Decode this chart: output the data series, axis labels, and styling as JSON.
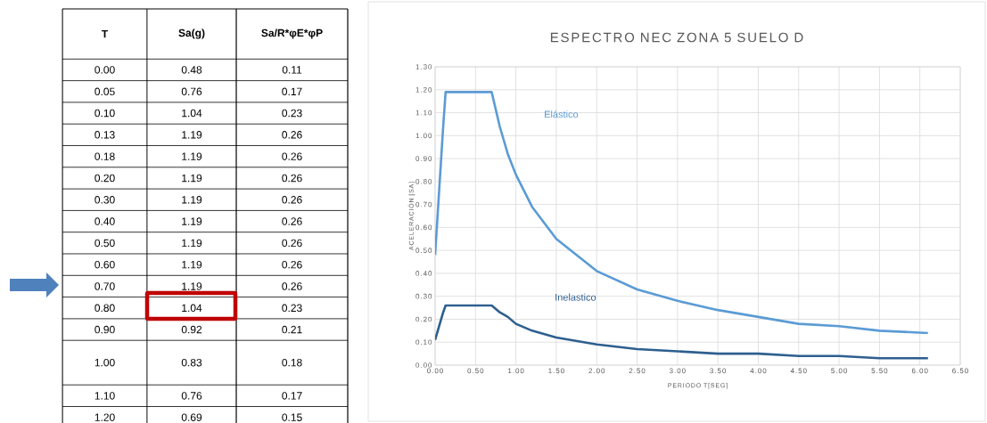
{
  "chart_data": [
    {
      "type": "heatmap",
      "ylabel": "T",
      "categories": [
        "Sa(g)",
        "Sa/R*φE*φP"
      ],
      "y_categories": [
        "0.00",
        "0.05",
        "0.10",
        "0.13",
        "0.18",
        "0.20",
        "0.30",
        "0.40",
        "0.50",
        "0.60",
        "0.70",
        "0.80",
        "0.90",
        "1.00",
        "1.10",
        "1.20"
      ],
      "cells": [
        [
          0.48,
          0.11
        ],
        [
          0.76,
          0.17
        ],
        [
          1.04,
          0.23
        ],
        [
          1.19,
          0.26
        ],
        [
          1.19,
          0.26
        ],
        [
          1.19,
          0.26
        ],
        [
          1.19,
          0.26
        ],
        [
          1.19,
          0.26
        ],
        [
          1.19,
          0.26
        ],
        [
          1.19,
          0.26
        ],
        [
          1.19,
          0.26
        ],
        [
          1.04,
          0.23
        ],
        [
          0.92,
          0.21
        ],
        [
          0.83,
          0.18
        ],
        [
          0.76,
          0.17
        ],
        [
          0.69,
          0.15
        ]
      ],
      "data_labels": true
    },
    {
      "type": "line",
      "title": "ESPECTRO NEC ZONA 5 SUELO D",
      "xlabel": "PERIODO T[SEG]",
      "ylabel": "ACELERACIÓN [SA]",
      "x": [
        0,
        0.05,
        0.1,
        0.13,
        0.18,
        0.2,
        0.3,
        0.4,
        0.5,
        0.6,
        0.7,
        0.8,
        0.9,
        1.0,
        1.2,
        1.5,
        2.0,
        2.5,
        3.0,
        3.5,
        4.0,
        4.5,
        5.0,
        5.5,
        6.1
      ],
      "series": [
        {
          "name": "Elástico",
          "color": "#5b9bd5",
          "values": [
            0.48,
            0.76,
            1.04,
            1.19,
            1.19,
            1.19,
            1.19,
            1.19,
            1.19,
            1.19,
            1.19,
            1.04,
            0.92,
            0.83,
            0.69,
            0.55,
            0.41,
            0.33,
            0.28,
            0.24,
            0.21,
            0.18,
            0.17,
            0.15,
            0.14
          ]
        },
        {
          "name": "Inelastico",
          "color": "#2e5f8f",
          "values": [
            0.11,
            0.17,
            0.23,
            0.26,
            0.26,
            0.26,
            0.26,
            0.26,
            0.26,
            0.26,
            0.26,
            0.23,
            0.21,
            0.18,
            0.15,
            0.12,
            0.09,
            0.07,
            0.06,
            0.05,
            0.05,
            0.04,
            0.04,
            0.03,
            0.03
          ]
        }
      ],
      "xlim": [
        0,
        6.5
      ],
      "ylim": [
        0,
        1.3
      ],
      "xticks": [
        {
          "value": 0,
          "label": "0.00"
        },
        {
          "value": 0.5,
          "label": "0.50"
        },
        {
          "value": 1,
          "label": "1.00"
        },
        {
          "value": 1.5,
          "label": "1.50"
        },
        {
          "value": 2,
          "label": "2.00"
        },
        {
          "value": 2.5,
          "label": "2.50"
        },
        {
          "value": 3,
          "label": "3.00"
        },
        {
          "value": 3.5,
          "label": "3.50"
        },
        {
          "value": 4,
          "label": "4.00"
        },
        {
          "value": 4.5,
          "label": "4.50"
        },
        {
          "value": 5,
          "label": "5.00"
        },
        {
          "value": 5.5,
          "label": "5.50"
        },
        {
          "value": 6,
          "label": "6.00"
        },
        {
          "value": 6.5,
          "label": "6.50"
        }
      ],
      "yticks": [
        {
          "value": 0,
          "label": "0.00"
        },
        {
          "value": 0.1,
          "label": "0.10"
        },
        {
          "value": 0.2,
          "label": "0.20"
        },
        {
          "value": 0.3,
          "label": "0.30"
        },
        {
          "value": 0.4,
          "label": "0.40"
        },
        {
          "value": 0.5,
          "label": "0.50"
        },
        {
          "value": 0.6,
          "label": "0.60"
        },
        {
          "value": 0.7,
          "label": "0.70"
        },
        {
          "value": 0.8,
          "label": "0.80"
        },
        {
          "value": 0.9,
          "label": "0.90"
        },
        {
          "value": 1.0,
          "label": "1.00"
        },
        {
          "value": 1.1,
          "label": "1.10"
        },
        {
          "value": 1.2,
          "label": "1.20"
        },
        {
          "value": 1.3,
          "label": "1.30"
        }
      ],
      "grid": true
    }
  ]
}
